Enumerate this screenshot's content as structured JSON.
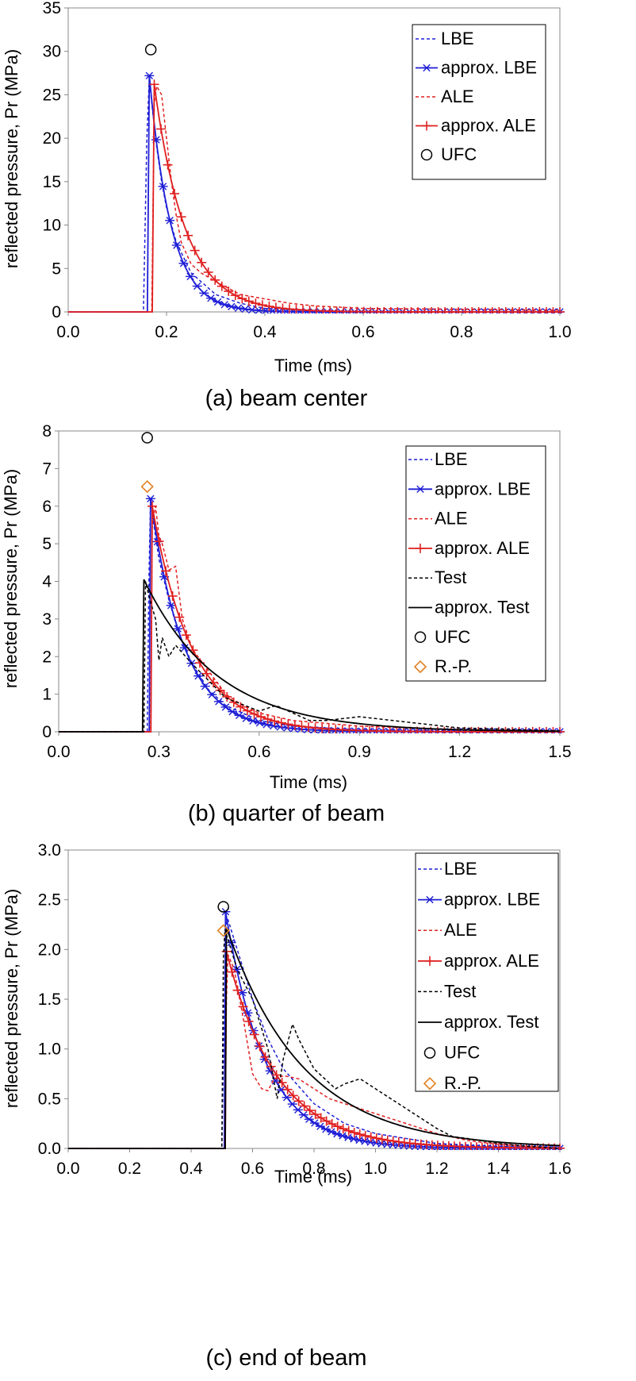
{
  "chart_data": [
    {
      "type": "line",
      "caption": "(a) beam center",
      "xlabel": "Time (ms)",
      "ylabel": "reflected pressure, Pr (MPa)",
      "xlim": [
        0,
        1.0
      ],
      "ylim": [
        0,
        35
      ],
      "xticks": [
        0,
        0.2,
        0.4,
        0.6,
        0.8,
        1.0
      ],
      "xtick_labels": [
        "0.0",
        "0.2",
        "0.4",
        "0.6",
        "0.8",
        "1.0"
      ],
      "yticks": [
        0,
        5,
        10,
        15,
        20,
        25,
        30,
        35
      ],
      "ytick_labels": [
        "0",
        "5",
        "10",
        "15",
        "20",
        "25",
        "30",
        "35"
      ],
      "legend_position": "top-right",
      "series": [
        {
          "name": "LBE",
          "style": "dashed",
          "color": "#1f1fd6",
          "marker": "none",
          "x": [
            0,
            0.153,
            0.16,
            0.165,
            0.17,
            0.18,
            0.19,
            0.2,
            0.22,
            0.25,
            0.3,
            0.35,
            0.4,
            0.5,
            0.6,
            1.0
          ],
          "y": [
            0,
            0,
            20,
            27,
            24,
            19,
            15,
            12,
            8,
            4.5,
            2,
            1,
            0.4,
            0.1,
            0.05,
            0
          ]
        },
        {
          "name": "approx. LBE",
          "style": "solid",
          "color": "#1f1fd6",
          "marker": "asterisk",
          "pulse": {
            "t0": 0.165,
            "peak": 27.2,
            "tau": 0.044
          }
        },
        {
          "name": "ALE",
          "style": "dashed",
          "color": "#e02020",
          "marker": "none",
          "x": [
            0,
            0.17,
            0.175,
            0.18,
            0.19,
            0.2,
            0.21,
            0.22,
            0.23,
            0.25,
            0.27,
            0.3,
            0.35,
            0.4,
            0.45,
            0.5,
            0.6,
            0.8,
            1.0
          ],
          "y": [
            0,
            0,
            24,
            26,
            25,
            20,
            15,
            11,
            8,
            5.5,
            4.5,
            3.5,
            2,
            1.5,
            1,
            0.7,
            0.4,
            0.3,
            0.2
          ]
        },
        {
          "name": "approx. ALE",
          "style": "solid",
          "color": "#e02020",
          "marker": "plus",
          "pulse": {
            "t0": 0.175,
            "peak": 26.2,
            "tau": 0.063
          }
        },
        {
          "name": "UFC",
          "style": "marker",
          "color": "#000000",
          "marker": "circle",
          "x": [
            0.168
          ],
          "y": [
            30.2
          ]
        }
      ]
    },
    {
      "type": "line",
      "caption": "(b) quarter of beam",
      "xlabel": "Time (ms)",
      "ylabel": "reflected pressure, Pr (MPa)",
      "xlim": [
        0,
        1.5
      ],
      "ylim": [
        0,
        8
      ],
      "xticks": [
        0,
        0.3,
        0.6,
        0.9,
        1.2,
        1.5
      ],
      "xtick_labels": [
        "0.0",
        "0.3",
        "0.6",
        "0.9",
        "1.2",
        "1.5"
      ],
      "yticks": [
        0,
        1,
        2,
        3,
        4,
        5,
        6,
        7,
        8
      ],
      "ytick_labels": [
        "0",
        "1",
        "2",
        "3",
        "4",
        "5",
        "6",
        "7",
        "8"
      ],
      "legend_position": "top-right",
      "series": [
        {
          "name": "LBE",
          "style": "dashed",
          "color": "#1f1fd6",
          "marker": "none",
          "x": [
            0,
            0.265,
            0.27,
            0.275,
            0.28,
            0.3,
            0.33,
            0.36,
            0.4,
            0.45,
            0.5,
            0.6,
            0.7,
            0.9,
            1.5
          ],
          "y": [
            0,
            0,
            4,
            6.2,
            5.8,
            4.6,
            3.5,
            2.6,
            1.8,
            1.1,
            0.7,
            0.3,
            0.15,
            0.05,
            0
          ]
        },
        {
          "name": "approx. LBE",
          "style": "solid",
          "color": "#1f1fd6",
          "marker": "asterisk",
          "pulse": {
            "t0": 0.275,
            "peak": 6.2,
            "tau": 0.1
          }
        },
        {
          "name": "ALE",
          "style": "dashed",
          "color": "#e02020",
          "marker": "none",
          "x": [
            0,
            0.275,
            0.28,
            0.29,
            0.3,
            0.31,
            0.33,
            0.35,
            0.37,
            0.4,
            0.45,
            0.5,
            0.55,
            0.6,
            0.7,
            0.9,
            1.2,
            1.5
          ],
          "y": [
            0,
            0,
            5.5,
            6.0,
            5.2,
            5.0,
            4.3,
            4.4,
            3.0,
            2.2,
            1.6,
            1.0,
            0.7,
            0.5,
            0.3,
            0.15,
            0.05,
            0.02
          ]
        },
        {
          "name": "approx. ALE",
          "style": "solid",
          "color": "#e02020",
          "marker": "plus",
          "pulse": {
            "t0": 0.28,
            "peak": 6.0,
            "tau": 0.12
          }
        },
        {
          "name": "Test",
          "style": "dashed",
          "color": "#000000",
          "marker": "none",
          "x": [
            0,
            0.255,
            0.26,
            0.265,
            0.28,
            0.29,
            0.3,
            0.31,
            0.33,
            0.35,
            0.4,
            0.5,
            0.6,
            0.65,
            0.7,
            0.75,
            0.8,
            0.9,
            1.0,
            1.1,
            1.2,
            1.3,
            1.4,
            1.5
          ],
          "y": [
            0,
            0,
            4.0,
            3.8,
            3.3,
            3.0,
            1.9,
            2.5,
            2.0,
            2.3,
            1.8,
            0.9,
            0.55,
            0.7,
            0.5,
            0.3,
            0.3,
            0.4,
            0.3,
            0.2,
            0.1,
            0.08,
            0.05,
            0.02
          ]
        },
        {
          "name": "approx. Test",
          "style": "solid",
          "color": "#000000",
          "marker": "none",
          "pulse": {
            "t0": 0.255,
            "peak": 4.05,
            "tau": 0.22
          }
        },
        {
          "name": "UFC",
          "style": "marker",
          "color": "#000000",
          "marker": "circle",
          "x": [
            0.265
          ],
          "y": [
            7.82
          ]
        },
        {
          "name": "R.-P.",
          "style": "marker",
          "color": "#e08020",
          "marker": "diamond",
          "x": [
            0.265
          ],
          "y": [
            6.52
          ]
        }
      ]
    },
    {
      "type": "line",
      "caption": "(c) end of beam",
      "xlabel": "Time (ms)",
      "ylabel": "reflected pressure, Pr (MPa)",
      "xlim": [
        0,
        1.6
      ],
      "ylim": [
        0,
        3.0
      ],
      "xticks": [
        0,
        0.2,
        0.4,
        0.6,
        0.8,
        1.0,
        1.2,
        1.4,
        1.6
      ],
      "xtick_labels": [
        "0.0",
        "0.2",
        "0.4",
        "0.6",
        "0.8",
        "1.0",
        "1.2",
        "1.4",
        "1.6"
      ],
      "yticks": [
        0,
        0.5,
        1.0,
        1.5,
        2.0,
        2.5,
        3.0
      ],
      "ytick_labels": [
        "0.0",
        "0.5",
        "1.0",
        "1.5",
        "2.0",
        "2.5",
        "3.0"
      ],
      "legend_position": "top-right",
      "series": [
        {
          "name": "LBE",
          "style": "dashed",
          "color": "#1f1fd6",
          "marker": "none",
          "x": [
            0,
            0.5,
            0.51,
            0.515,
            0.52,
            0.55,
            0.6,
            0.65,
            0.7,
            0.8,
            0.9,
            1.0,
            1.2,
            1.4,
            1.6
          ],
          "y": [
            0,
            0,
            1.8,
            2.3,
            2.3,
            2.0,
            1.5,
            1.1,
            0.8,
            0.45,
            0.25,
            0.15,
            0.05,
            0.02,
            0
          ]
        },
        {
          "name": "approx. LBE",
          "style": "solid",
          "color": "#1f1fd6",
          "marker": "asterisk",
          "pulse": {
            "t0": 0.512,
            "peak": 2.38,
            "tau": 0.13
          }
        },
        {
          "name": "ALE",
          "style": "dashed",
          "color": "#e02020",
          "marker": "none",
          "x": [
            0,
            0.51,
            0.515,
            0.52,
            0.54,
            0.57,
            0.6,
            0.63,
            0.65,
            0.67,
            0.7,
            0.72,
            0.75,
            0.8,
            0.85,
            0.9,
            1.0,
            1.1,
            1.2,
            1.3,
            1.4,
            1.6
          ],
          "y": [
            0,
            0,
            1.5,
            1.95,
            1.8,
            1.3,
            0.75,
            0.6,
            0.58,
            0.7,
            0.73,
            0.72,
            0.7,
            0.6,
            0.5,
            0.45,
            0.35,
            0.25,
            0.15,
            0.08,
            0.04,
            0
          ]
        },
        {
          "name": "approx. ALE",
          "style": "solid",
          "color": "#e02020",
          "marker": "plus",
          "pulse": {
            "t0": 0.515,
            "peak": 1.98,
            "tau": 0.165
          }
        },
        {
          "name": "Test",
          "style": "dashed",
          "color": "#000000",
          "marker": "none",
          "x": [
            0,
            0.5,
            0.505,
            0.51,
            0.55,
            0.6,
            0.65,
            0.68,
            0.7,
            0.73,
            0.75,
            0.8,
            0.87,
            0.9,
            0.95,
            1.0,
            1.1,
            1.2,
            1.25,
            1.3,
            1.4,
            1.5,
            1.6
          ],
          "y": [
            0,
            0,
            1.9,
            2.2,
            1.8,
            1.5,
            1.0,
            0.5,
            0.9,
            1.25,
            1.1,
            0.8,
            0.6,
            0.65,
            0.7,
            0.6,
            0.4,
            0.2,
            0.12,
            0.1,
            0.05,
            0.02,
            0
          ]
        },
        {
          "name": "approx. Test",
          "style": "solid",
          "color": "#000000",
          "marker": "none",
          "pulse": {
            "t0": 0.515,
            "peak": 2.22,
            "tau": 0.25
          }
        },
        {
          "name": "UFC",
          "style": "marker",
          "color": "#000000",
          "marker": "circle",
          "x": [
            0.505
          ],
          "y": [
            2.43
          ]
        },
        {
          "name": "R.-P.",
          "style": "marker",
          "color": "#e08020",
          "marker": "diamond",
          "x": [
            0.505
          ],
          "y": [
            2.19
          ]
        }
      ]
    }
  ]
}
